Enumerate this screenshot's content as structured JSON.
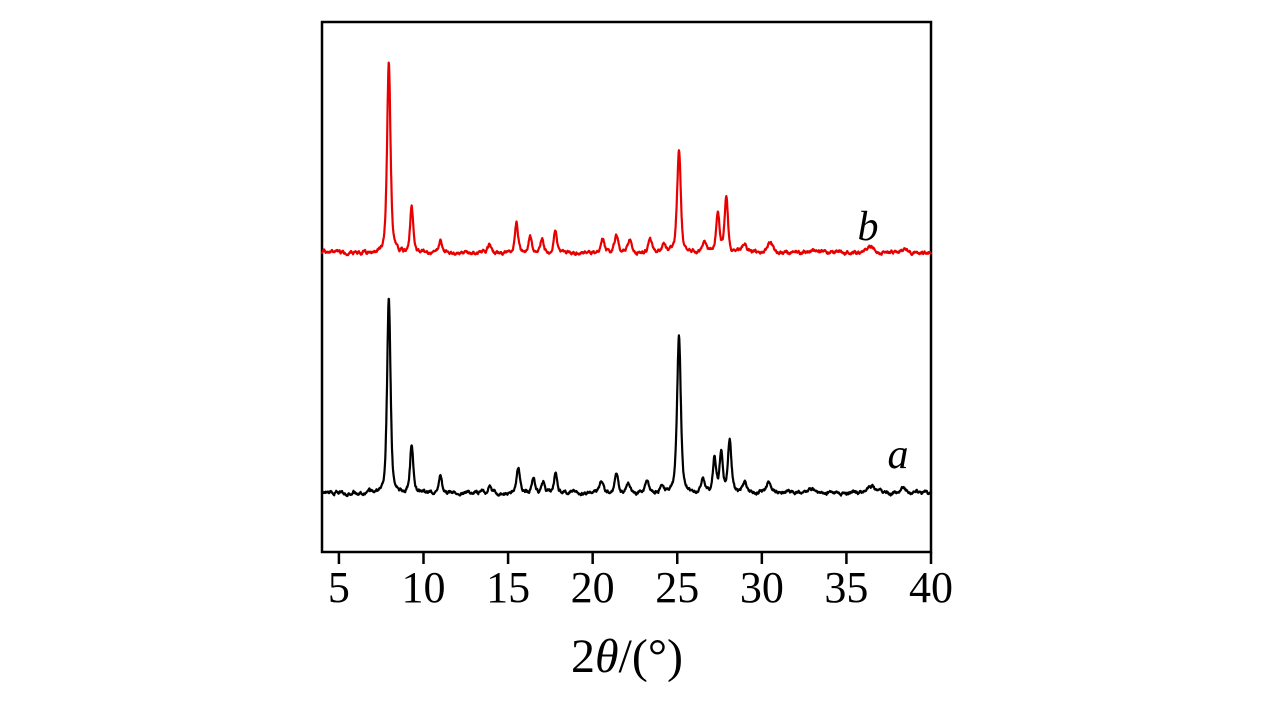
{
  "chart_data": {
    "type": "line",
    "title": "",
    "xlabel_text": "2θ/(°)",
    "xlabel_parts": {
      "prefix": "2",
      "theta": "θ",
      "suffix": "/(°)"
    },
    "x_axis": {
      "min": 4,
      "max": 40,
      "ticks": [
        5,
        10,
        15,
        20,
        25,
        30,
        35,
        40
      ]
    },
    "y_axis": {
      "visible": false
    },
    "legend_position": "inline-right",
    "grid": false,
    "frame_color": "#000000",
    "background_color": "#ffffff",
    "series": [
      {
        "name": "a",
        "label": "a",
        "color": "#000000",
        "offset_position": "bottom",
        "peaks": [
          {
            "x": 7.95,
            "i": 100,
            "w": 0.12
          },
          {
            "x": 9.3,
            "i": 24,
            "w": 0.11
          },
          {
            "x": 11.0,
            "i": 9,
            "w": 0.11
          },
          {
            "x": 13.9,
            "i": 4,
            "w": 0.12
          },
          {
            "x": 15.6,
            "i": 13,
            "w": 0.11
          },
          {
            "x": 16.5,
            "i": 8,
            "w": 0.11
          },
          {
            "x": 17.1,
            "i": 6,
            "w": 0.11
          },
          {
            "x": 17.8,
            "i": 10,
            "w": 0.11
          },
          {
            "x": 20.5,
            "i": 6,
            "w": 0.13
          },
          {
            "x": 21.4,
            "i": 10,
            "w": 0.13
          },
          {
            "x": 22.1,
            "i": 4,
            "w": 0.13
          },
          {
            "x": 23.2,
            "i": 6,
            "w": 0.13
          },
          {
            "x": 24.1,
            "i": 4,
            "w": 0.12
          },
          {
            "x": 25.1,
            "i": 80,
            "w": 0.13
          },
          {
            "x": 26.5,
            "i": 6,
            "w": 0.12
          },
          {
            "x": 27.2,
            "i": 17,
            "w": 0.11
          },
          {
            "x": 27.6,
            "i": 20,
            "w": 0.11
          },
          {
            "x": 28.1,
            "i": 27,
            "w": 0.12
          },
          {
            "x": 29.0,
            "i": 5,
            "w": 0.15
          },
          {
            "x": 30.4,
            "i": 5,
            "w": 0.18
          },
          {
            "x": 33.0,
            "i": 2,
            "w": 0.25
          },
          {
            "x": 36.5,
            "i": 3,
            "w": 0.25
          },
          {
            "x": 38.3,
            "i": 2,
            "w": 0.25
          }
        ]
      },
      {
        "name": "b",
        "label": "b",
        "color": "#e80000",
        "offset_position": "top",
        "peaks": [
          {
            "x": 7.95,
            "i": 100,
            "w": 0.12
          },
          {
            "x": 9.3,
            "i": 24,
            "w": 0.11
          },
          {
            "x": 11.0,
            "i": 6,
            "w": 0.12
          },
          {
            "x": 13.9,
            "i": 4,
            "w": 0.12
          },
          {
            "x": 15.5,
            "i": 15,
            "w": 0.11
          },
          {
            "x": 16.3,
            "i": 9,
            "w": 0.11
          },
          {
            "x": 17.0,
            "i": 8,
            "w": 0.11
          },
          {
            "x": 17.8,
            "i": 12,
            "w": 0.11
          },
          {
            "x": 20.6,
            "i": 7,
            "w": 0.13
          },
          {
            "x": 21.4,
            "i": 9,
            "w": 0.13
          },
          {
            "x": 22.2,
            "i": 7,
            "w": 0.13
          },
          {
            "x": 23.4,
            "i": 6,
            "w": 0.13
          },
          {
            "x": 24.2,
            "i": 5,
            "w": 0.12
          },
          {
            "x": 25.1,
            "i": 53,
            "w": 0.13
          },
          {
            "x": 26.6,
            "i": 6,
            "w": 0.12
          },
          {
            "x": 27.4,
            "i": 20,
            "w": 0.12
          },
          {
            "x": 27.9,
            "i": 28,
            "w": 0.12
          },
          {
            "x": 29.0,
            "i": 5,
            "w": 0.15
          },
          {
            "x": 30.5,
            "i": 6,
            "w": 0.18
          },
          {
            "x": 33.0,
            "i": 2,
            "w": 0.25
          },
          {
            "x": 36.5,
            "i": 3,
            "w": 0.25
          },
          {
            "x": 38.3,
            "i": 2,
            "w": 0.25
          }
        ]
      }
    ]
  }
}
